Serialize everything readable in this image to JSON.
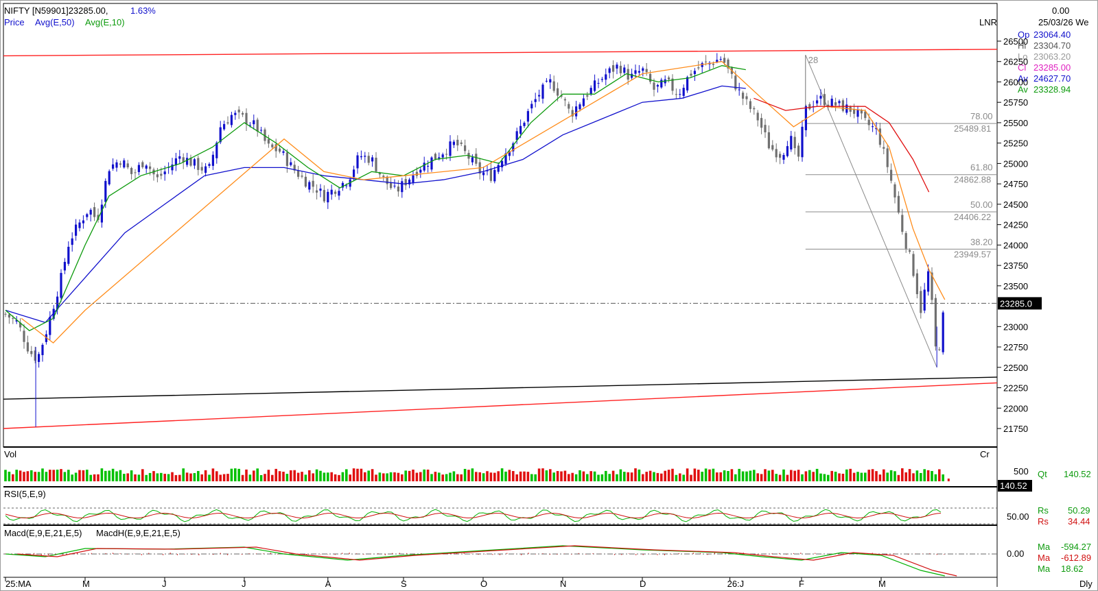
{
  "header": {
    "symbol_line": "NIFTY [N59901]23285.00,",
    "change_pct": "1.63%",
    "legend": [
      {
        "label": "Price",
        "color": "#1010cc"
      },
      {
        "label": "Avg(E,50)",
        "color": "#1010cc"
      },
      {
        "label": "Avg(E,10)",
        "color": "#0c9a0c"
      }
    ],
    "scale_label": "LNR"
  },
  "info_panel": {
    "top_value": "0.00",
    "date": "25/03/26 We",
    "rows": [
      {
        "label": "Op",
        "value": "23064.40",
        "color": "#1010cc"
      },
      {
        "label": "Hi",
        "value": "23304.70",
        "color": "#555555"
      },
      {
        "label": "Lo",
        "value": "23063.20",
        "color": "#999999"
      },
      {
        "label": "Cl",
        "value": "23285.00",
        "color": "#e020c0"
      },
      {
        "label": "Av",
        "value": "24627.70",
        "color": "#1010cc"
      },
      {
        "label": "Av",
        "value": "23328.94",
        "color": "#0c9a0c"
      }
    ]
  },
  "fib": {
    "start_label": "28",
    "levels": [
      {
        "pct": "78.00",
        "price_label": "25489.81",
        "price": 25489.81
      },
      {
        "pct": "61.80",
        "price_label": "24862.88",
        "price": 24862.88
      },
      {
        "pct": "50.00",
        "price_label": "24406.22",
        "price": 24406.22
      },
      {
        "pct": "38.20",
        "price_label": "23949.57",
        "price": 23949.57
      }
    ]
  },
  "price_axis": {
    "ticks": [
      "26500",
      "26250",
      "26000",
      "25750",
      "25500",
      "25250",
      "25000",
      "24750",
      "24500",
      "24250",
      "24000",
      "23750",
      "23500",
      "23285.0",
      "23000",
      "22750",
      "22500",
      "22250",
      "22000",
      "21750"
    ],
    "last_price_label": "23285.0"
  },
  "volume_pane": {
    "label": "Vol",
    "unit": "Cr",
    "axis_label": "500",
    "last_label": "140.52",
    "readout": {
      "label": "Qt",
      "value": "140.52"
    }
  },
  "rsi_pane": {
    "label": "RSI(5,E,9)",
    "axis_label": "50.00",
    "readouts": [
      {
        "label": "Rs",
        "value": "50.29",
        "color": "#0c9a0c"
      },
      {
        "label": "Rs",
        "value": "34.44",
        "color": "#d01010"
      }
    ]
  },
  "macd_pane": {
    "label": "Macd(E,9,E,21,E,5)",
    "label2": "MacdH(E,9,E,21,E,5)",
    "axis_label": "0.00",
    "readouts": [
      {
        "label": "Ma",
        "value": "-594.27",
        "color": "#0c9a0c"
      },
      {
        "label": "Ma",
        "value": "-612.89",
        "color": "#d01010"
      },
      {
        "label": "Ma",
        "value": "18.62",
        "color": "#0c9a0c"
      }
    ]
  },
  "time_axis": {
    "months": [
      "25:MA",
      "M",
      "J",
      "J",
      "A",
      "S",
      "O",
      "N",
      "D",
      "26:J",
      "F",
      "M"
    ],
    "period": "Dly"
  },
  "chart_data": {
    "type": "candlestick",
    "title": "NIFTY [N59901]",
    "x_start": "25:MA",
    "ylim": [
      21650,
      26750
    ],
    "grid": false,
    "months": [
      "25:MA",
      "M",
      "J",
      "J",
      "A",
      "S",
      "O",
      "N",
      "D",
      "26:J",
      "F",
      "M"
    ],
    "last_close": 23285.0,
    "trendlines": [
      {
        "color": "#ff2020",
        "from": {
          "month_idx": 0,
          "price": 26320
        },
        "to": {
          "month_idx": 11.7,
          "price": 26400
        }
      },
      {
        "color": "#000000",
        "from": {
          "month_idx": 0,
          "price": 22110
        },
        "to": {
          "month_idx": 11.7,
          "price": 22380
        }
      },
      {
        "color": "#ff2020",
        "from": {
          "month_idx": 0,
          "price": 21750
        },
        "to": {
          "month_idx": 11.7,
          "price": 22310
        }
      }
    ],
    "close_path": [
      [
        0,
        23150
      ],
      [
        0.15,
        23050
      ],
      [
        0.3,
        22700
      ],
      [
        0.4,
        22600
      ],
      [
        0.5,
        22900
      ],
      [
        0.6,
        23250
      ],
      [
        0.7,
        23600
      ],
      [
        0.8,
        24050
      ],
      [
        0.95,
        24300
      ],
      [
        1.05,
        24450
      ],
      [
        1.15,
        24300
      ],
      [
        1.3,
        24950
      ],
      [
        1.45,
        25050
      ],
      [
        1.6,
        24850
      ],
      [
        1.75,
        25050
      ],
      [
        1.9,
        24800
      ],
      [
        2.05,
        24950
      ],
      [
        2.2,
        25100
      ],
      [
        2.35,
        25000
      ],
      [
        2.55,
        24900
      ],
      [
        2.7,
        25450
      ],
      [
        2.85,
        25600
      ],
      [
        3.0,
        25550
      ],
      [
        3.15,
        25450
      ],
      [
        3.3,
        25200
      ],
      [
        3.45,
        25150
      ],
      [
        3.6,
        24950
      ],
      [
        3.75,
        24800
      ],
      [
        3.9,
        24700
      ],
      [
        4.0,
        24600
      ],
      [
        4.15,
        24700
      ],
      [
        4.3,
        24800
      ],
      [
        4.45,
        25100
      ],
      [
        4.6,
        25050
      ],
      [
        4.75,
        24800
      ],
      [
        4.9,
        24650
      ],
      [
        5.05,
        24800
      ],
      [
        5.2,
        24950
      ],
      [
        5.35,
        25050
      ],
      [
        5.5,
        25150
      ],
      [
        5.65,
        25250
      ],
      [
        5.8,
        25100
      ],
      [
        5.95,
        24900
      ],
      [
        6.1,
        24850
      ],
      [
        6.25,
        25100
      ],
      [
        6.4,
        25300
      ],
      [
        6.55,
        25600
      ],
      [
        6.7,
        25850
      ],
      [
        6.85,
        26000
      ],
      [
        7.0,
        25800
      ],
      [
        7.1,
        25600
      ],
      [
        7.25,
        25800
      ],
      [
        7.4,
        25950
      ],
      [
        7.55,
        26100
      ],
      [
        7.7,
        26200
      ],
      [
        7.85,
        26050
      ],
      [
        8.0,
        26150
      ],
      [
        8.15,
        25900
      ],
      [
        8.3,
        26000
      ],
      [
        8.45,
        25850
      ],
      [
        8.6,
        26100
      ],
      [
        8.75,
        26200
      ],
      [
        8.9,
        26250
      ],
      [
        9.0,
        26300
      ],
      [
        9.1,
        26100
      ],
      [
        9.2,
        25900
      ],
      [
        9.3,
        25750
      ],
      [
        9.45,
        25550
      ],
      [
        9.6,
        25200
      ],
      [
        9.75,
        25100
      ],
      [
        9.85,
        25350
      ],
      [
        9.95,
        25000
      ],
      [
        10.05,
        25650
      ],
      [
        10.2,
        25800
      ],
      [
        10.35,
        25750
      ],
      [
        10.5,
        25700
      ],
      [
        10.65,
        25650
      ],
      [
        10.8,
        25500
      ],
      [
        10.95,
        25400
      ],
      [
        11.1,
        24900
      ],
      [
        11.25,
        24250
      ],
      [
        11.4,
        23700
      ],
      [
        11.5,
        23200
      ],
      [
        11.6,
        23700
      ],
      [
        11.7,
        22550
      ],
      [
        11.8,
        23285
      ]
    ],
    "series": [
      {
        "name": "Avg(E,50)",
        "color": "#1010cc",
        "points": [
          [
            0,
            23200
          ],
          [
            0.5,
            23050
          ],
          [
            1.0,
            23600
          ],
          [
            1.5,
            24150
          ],
          [
            2.0,
            24500
          ],
          [
            2.5,
            24850
          ],
          [
            3.0,
            24950
          ],
          [
            3.5,
            24950
          ],
          [
            4.0,
            24850
          ],
          [
            4.5,
            24800
          ],
          [
            5.0,
            24750
          ],
          [
            5.5,
            24800
          ],
          [
            6.0,
            24900
          ],
          [
            6.5,
            25050
          ],
          [
            7.0,
            25350
          ],
          [
            7.5,
            25550
          ],
          [
            8.0,
            25750
          ],
          [
            8.5,
            25800
          ],
          [
            9.0,
            25950
          ],
          [
            9.3,
            25920
          ]
        ]
      },
      {
        "name": "Avg(E,10)",
        "color": "#0c9a0c",
        "points": [
          [
            0,
            23200
          ],
          [
            0.3,
            22950
          ],
          [
            0.6,
            23100
          ],
          [
            1.0,
            24000
          ],
          [
            1.3,
            24600
          ],
          [
            1.7,
            24850
          ],
          [
            2.2,
            25000
          ],
          [
            2.6,
            25200
          ],
          [
            3.0,
            25500
          ],
          [
            3.4,
            25250
          ],
          [
            3.8,
            24950
          ],
          [
            4.2,
            24700
          ],
          [
            4.6,
            24900
          ],
          [
            5.0,
            24850
          ],
          [
            5.4,
            25050
          ],
          [
            5.8,
            25100
          ],
          [
            6.2,
            25000
          ],
          [
            6.6,
            25500
          ],
          [
            7.0,
            25850
          ],
          [
            7.4,
            25850
          ],
          [
            7.8,
            26100
          ],
          [
            8.2,
            26000
          ],
          [
            8.6,
            26050
          ],
          [
            9.0,
            26200
          ],
          [
            9.3,
            26150
          ]
        ]
      },
      {
        "name": "",
        "color": "#ff8c1a",
        "points": [
          [
            0.2,
            23100
          ],
          [
            0.6,
            22800
          ],
          [
            1.0,
            23200
          ],
          [
            3.5,
            25300
          ],
          [
            4.0,
            24900
          ],
          [
            4.5,
            24800
          ],
          [
            5.0,
            24850
          ],
          [
            6.0,
            24950
          ],
          [
            8.0,
            26100
          ],
          [
            9.0,
            26250
          ],
          [
            9.5,
            25800
          ],
          [
            9.9,
            25450
          ],
          [
            10.3,
            25700
          ],
          [
            10.8,
            25650
          ],
          [
            11.1,
            25200
          ],
          [
            11.4,
            24200
          ],
          [
            11.6,
            23700
          ],
          [
            11.8,
            23330
          ]
        ]
      },
      {
        "name": "",
        "color": "#e01010",
        "points": [
          [
            9.4,
            25800
          ],
          [
            9.8,
            25650
          ],
          [
            10.2,
            25700
          ],
          [
            10.8,
            25700
          ],
          [
            11.1,
            25500
          ],
          [
            11.4,
            25050
          ],
          [
            11.6,
            24650
          ]
        ]
      }
    ],
    "volume": {
      "axis_value": 500,
      "last": 140.52
    },
    "rsi": {
      "axis_value": 50.0,
      "rsi": 50.29,
      "signal": 34.44
    },
    "macd": {
      "axis_value": 0.0,
      "macd": -594.27,
      "signal": -612.89,
      "hist": 18.62
    }
  }
}
